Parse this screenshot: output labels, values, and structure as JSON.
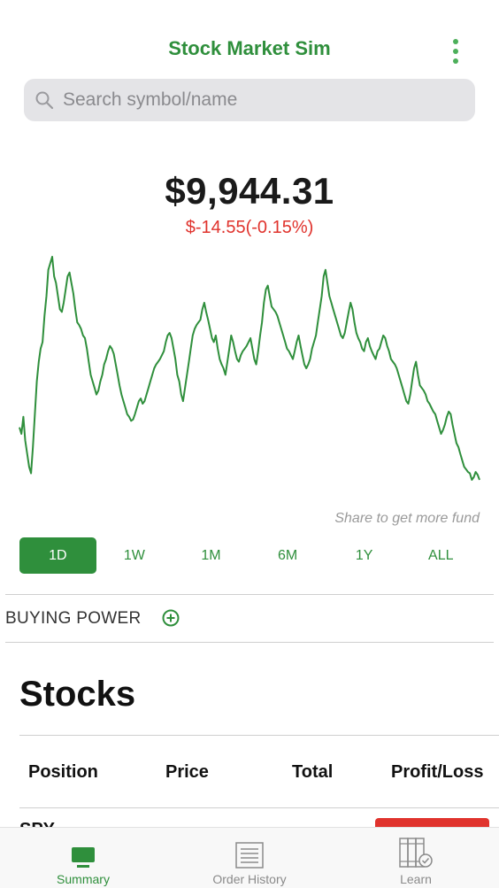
{
  "header": {
    "title": "Stock Market Sim",
    "menu_icon": "more-vertical-icon"
  },
  "search": {
    "placeholder": "Search symbol/name"
  },
  "portfolio": {
    "value": "$9,944.31",
    "change": "$-14.55(-0.15%)"
  },
  "chart_data": {
    "type": "line",
    "color": "#2f8f3c",
    "values": [
      60,
      55,
      68,
      50,
      40,
      30,
      25,
      45,
      70,
      95,
      110,
      120,
      125,
      145,
      160,
      180,
      185,
      190,
      175,
      170,
      160,
      150,
      148,
      155,
      165,
      175,
      178,
      170,
      162,
      150,
      140,
      138,
      135,
      130,
      128,
      120,
      110,
      100,
      95,
      90,
      85,
      88,
      95,
      100,
      108,
      112,
      118,
      122,
      120,
      116,
      108,
      100,
      92,
      85,
      80,
      75,
      70,
      68,
      65,
      66,
      70,
      75,
      80,
      82,
      78,
      80,
      85,
      90,
      95,
      100,
      105,
      108,
      110,
      112,
      115,
      118,
      125,
      130,
      132,
      128,
      120,
      112,
      100,
      95,
      85,
      80,
      90,
      100,
      110,
      120,
      130,
      135,
      138,
      140,
      142,
      150,
      155,
      148,
      142,
      135,
      128,
      125,
      130,
      120,
      112,
      108,
      105,
      100,
      110,
      120,
      130,
      125,
      118,
      112,
      110,
      115,
      118,
      120,
      122,
      125,
      128,
      120,
      112,
      108,
      118,
      130,
      140,
      155,
      165,
      168,
      160,
      152,
      150,
      148,
      145,
      140,
      135,
      130,
      125,
      120,
      118,
      115,
      112,
      118,
      125,
      130,
      122,
      115,
      108,
      105,
      108,
      112,
      120,
      125,
      130,
      140,
      150,
      160,
      175,
      180,
      170,
      160,
      155,
      150,
      145,
      140,
      135,
      130,
      128,
      132,
      140,
      148,
      155,
      150,
      140,
      132,
      128,
      125,
      120,
      118,
      125,
      128,
      122,
      118,
      115,
      112,
      118,
      120,
      125,
      130,
      128,
      122,
      118,
      112,
      110,
      108,
      105,
      100,
      95,
      90,
      85,
      80,
      78,
      85,
      95,
      105,
      110,
      100,
      92,
      90,
      88,
      85,
      80,
      78,
      75,
      72,
      70,
      65,
      60,
      55,
      58,
      62,
      68,
      72,
      70,
      62,
      55,
      48,
      45,
      40,
      35,
      30,
      28,
      26,
      25,
      20,
      22,
      26,
      24,
      20
    ],
    "period": "1D"
  },
  "share_text": "Share to get more fund",
  "ranges": [
    "1D",
    "1W",
    "1M",
    "6M",
    "1Y",
    "ALL"
  ],
  "active_range": "1D",
  "buying_power": {
    "label": "BUYING POWER",
    "icon": "plus-circle-icon"
  },
  "stocks": {
    "heading": "Stocks",
    "columns": [
      "Position",
      "Price",
      "Total",
      "Profit/Loss"
    ],
    "partial_row_symbol": "SPY"
  },
  "tabs": [
    {
      "label": "Summary",
      "icon": "monitor-icon",
      "active": true
    },
    {
      "label": "Order History",
      "icon": "list-icon",
      "active": false
    },
    {
      "label": "Learn",
      "icon": "books-icon",
      "active": false
    }
  ]
}
